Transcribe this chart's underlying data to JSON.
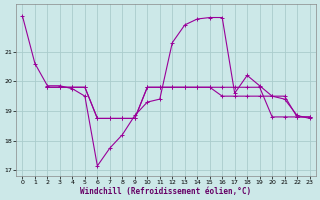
{
  "xlabel": "Windchill (Refroidissement éolien,°C)",
  "bg_color": "#cce8e8",
  "grid_color": "#aacccc",
  "line_color": "#990099",
  "ylim": [
    16.8,
    22.6
  ],
  "xlim": [
    -0.5,
    23.5
  ],
  "yticks": [
    17,
    18,
    19,
    20,
    21
  ],
  "xticks": [
    0,
    1,
    2,
    3,
    4,
    5,
    6,
    7,
    8,
    9,
    10,
    11,
    12,
    13,
    14,
    15,
    16,
    17,
    18,
    19,
    20,
    21,
    22,
    23
  ],
  "line1_x": [
    0,
    1,
    2,
    3,
    4,
    5,
    6,
    7,
    8,
    9,
    10,
    11,
    12,
    13,
    14,
    15,
    16,
    17,
    18,
    19,
    20,
    21,
    22,
    23
  ],
  "line1_y": [
    22.2,
    20.6,
    19.85,
    19.85,
    19.75,
    19.5,
    17.15,
    17.75,
    18.2,
    18.85,
    19.3,
    19.4,
    21.3,
    21.9,
    22.1,
    22.15,
    22.15,
    19.6,
    20.2,
    19.85,
    19.5,
    19.4,
    18.85,
    18.75
  ],
  "line2_x": [
    2,
    3,
    4,
    5,
    6,
    7,
    8,
    9,
    10,
    11,
    12,
    13,
    14,
    15,
    16,
    17,
    18,
    19,
    20,
    21,
    22,
    23
  ],
  "line2_y": [
    19.8,
    19.8,
    19.8,
    19.8,
    18.75,
    18.75,
    18.75,
    18.75,
    19.8,
    19.8,
    19.8,
    19.8,
    19.8,
    19.8,
    19.5,
    19.5,
    19.5,
    19.5,
    19.5,
    19.5,
    18.8,
    18.8
  ],
  "line3_x": [
    2,
    3,
    4,
    5,
    6,
    7,
    8,
    9,
    10,
    11,
    12,
    13,
    14,
    15,
    16,
    17,
    18,
    19,
    20,
    21,
    22,
    23
  ],
  "line3_y": [
    19.8,
    19.8,
    19.8,
    19.8,
    18.75,
    18.75,
    18.75,
    18.75,
    19.8,
    19.8,
    19.8,
    19.8,
    19.8,
    19.8,
    19.8,
    19.8,
    19.8,
    19.8,
    18.8,
    18.8,
    18.8,
    18.8
  ]
}
